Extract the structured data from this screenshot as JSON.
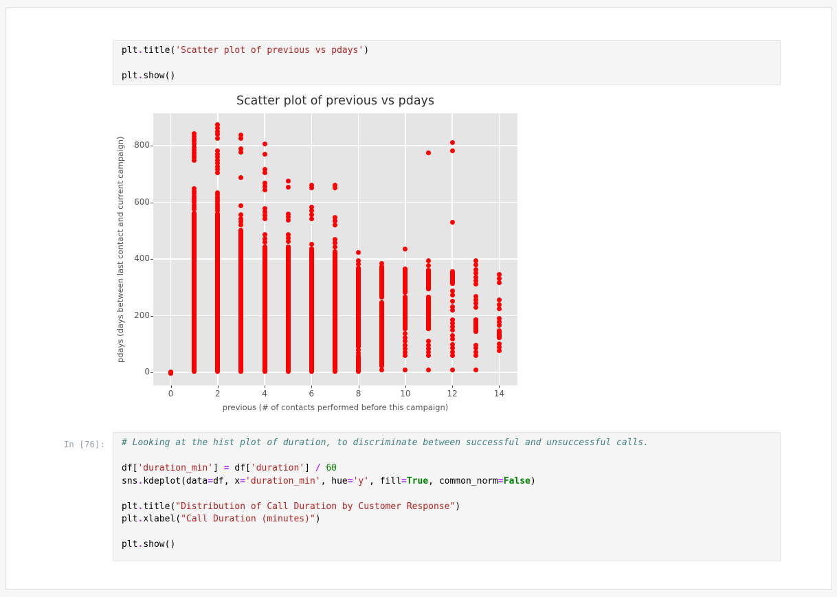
{
  "notebook": {
    "cell1": {
      "lines": [
        [
          [
            "p",
            "plt"
          ],
          [
            "o",
            "."
          ],
          [
            "p",
            "title("
          ],
          [
            "s",
            "'Scatter plot of previous vs pdays'"
          ],
          [
            "p",
            ")"
          ]
        ],
        [],
        [
          [
            "p",
            "plt"
          ],
          [
            "o",
            "."
          ],
          [
            "p",
            "show()"
          ]
        ]
      ]
    },
    "cell2": {
      "prompt": "In [76]:",
      "lines": [
        [
          [
            "c",
            "# Looking at the hist plot of duration, to discriminate between successful and unsuccessful calls."
          ]
        ],
        [],
        [
          [
            "p",
            "df["
          ],
          [
            "s",
            "'duration_min'"
          ],
          [
            "p",
            "] "
          ],
          [
            "o",
            "="
          ],
          [
            "p",
            " df["
          ],
          [
            "s",
            "'duration'"
          ],
          [
            "p",
            "] "
          ],
          [
            "o",
            "/"
          ],
          [
            "p",
            " "
          ],
          [
            "n",
            "60"
          ]
        ],
        [
          [
            "p",
            "sns"
          ],
          [
            "o",
            "."
          ],
          [
            "p",
            "kdeplot(data"
          ],
          [
            "o",
            "="
          ],
          [
            "p",
            "df, x"
          ],
          [
            "o",
            "="
          ],
          [
            "s",
            "'duration_min'"
          ],
          [
            "p",
            ", hue"
          ],
          [
            "o",
            "="
          ],
          [
            "s",
            "'y'"
          ],
          [
            "p",
            ", fill"
          ],
          [
            "o",
            "="
          ],
          [
            "k",
            "True"
          ],
          [
            "p",
            ", common_norm"
          ],
          [
            "o",
            "="
          ],
          [
            "k",
            "False"
          ],
          [
            "p",
            ")"
          ]
        ],
        [],
        [
          [
            "p",
            "plt"
          ],
          [
            "o",
            "."
          ],
          [
            "p",
            "title("
          ],
          [
            "s",
            "\"Distribution of Call Duration by Customer Response\""
          ],
          [
            "p",
            ")"
          ]
        ],
        [
          [
            "p",
            "plt"
          ],
          [
            "o",
            "."
          ],
          [
            "p",
            "xlabel("
          ],
          [
            "s",
            "\"Call Duration (minutes)\""
          ],
          [
            "p",
            ")"
          ]
        ],
        [],
        [
          [
            "p",
            "plt"
          ],
          [
            "o",
            "."
          ],
          [
            "p",
            "show()"
          ]
        ]
      ]
    }
  },
  "chart_data": {
    "type": "scatter",
    "title": "Scatter plot of previous vs pdays",
    "xlabel": "previous (# of contacts performed before this campaign)",
    "ylabel": "pdays (days between last contact and current campaign)",
    "x_ticks": [
      0,
      2,
      4,
      6,
      8,
      10,
      12,
      14
    ],
    "y_ticks": [
      0,
      200,
      400,
      600,
      800
    ],
    "xlim": [
      -0.75,
      14.78
    ],
    "ylim": [
      -46,
      914
    ],
    "grid": true,
    "point_color": "#ff0000",
    "plot_bg": "#e5e5e5",
    "columns": [
      {
        "x": 0,
        "bars": [
          [
            -8,
            6
          ]
        ],
        "dots": []
      },
      {
        "x": 1,
        "bars": [
          [
            0,
            565
          ]
        ],
        "dots": [
          575,
          583,
          591,
          599,
          607,
          615,
          623,
          632,
          640,
          648,
          748,
          757,
          766,
          775,
          784,
          793,
          806,
          815,
          824,
          833,
          842
        ]
      },
      {
        "x": 2,
        "bars": [
          [
            0,
            562
          ]
        ],
        "dots": [
          570,
          578,
          586,
          594,
          602,
          610,
          618,
          626,
          634,
          704,
          716,
          727,
          738,
          748,
          759,
          770,
          781,
          825,
          841,
          849,
          861,
          873
        ]
      },
      {
        "x": 3,
        "bars": [
          [
            0,
            505
          ]
        ],
        "dots": [
          519,
          531,
          543,
          556,
          588,
          688,
          777,
          789,
          826,
          838
        ]
      },
      {
        "x": 4,
        "bars": [
          [
            0,
            447
          ]
        ],
        "dots": [
          460,
          472,
          485,
          541,
          553,
          566,
          578,
          644,
          656,
          668,
          704,
          716,
          769,
          806
        ]
      },
      {
        "x": 5,
        "bars": [
          [
            0,
            445
          ]
        ],
        "dots": [
          461,
          473,
          485,
          538,
          548,
          558,
          653,
          675
        ]
      },
      {
        "x": 6,
        "bars": [
          [
            0,
            438
          ]
        ],
        "dots": [
          452,
          543,
          556,
          570,
          584,
          650,
          661
        ]
      },
      {
        "x": 7,
        "bars": [
          [
            0,
            430
          ]
        ],
        "dots": [
          443,
          456,
          470,
          521,
          534,
          547,
          650,
          661
        ]
      },
      {
        "x": 8,
        "bars": [
          [
            0,
            55
          ],
          [
            88,
            370
          ]
        ],
        "dots": [
          60,
          70,
          80,
          382,
          394,
          422
        ]
      },
      {
        "x": 9,
        "bars": [
          [
            20,
            250
          ],
          [
            262,
            376
          ]
        ],
        "dots": [
          8,
          385
        ]
      },
      {
        "x": 10,
        "bars": [
          [
            150,
            270
          ],
          [
            280,
            368
          ]
        ],
        "dots": [
          8,
          60,
          72,
          84,
          96,
          110,
          123,
          136,
          435
        ]
      },
      {
        "x": 11,
        "bars": [
          [
            150,
            270
          ],
          [
            290,
            364
          ]
        ],
        "dots": [
          8,
          60,
          72,
          84,
          96,
          110,
          377,
          393,
          775
        ]
      },
      {
        "x": 12,
        "bars": [
          [
            311,
            359
          ]
        ],
        "dots": [
          8,
          59,
          72,
          85,
          99,
          118,
          130,
          150,
          162,
          174,
          186,
          220,
          232,
          250,
          272,
          287,
          530,
          782,
          812
        ]
      },
      {
        "x": 13,
        "bars": [
          [
            140,
            190
          ]
        ],
        "dots": [
          8,
          60,
          72,
          85,
          97,
          230,
          243,
          256,
          268,
          311,
          324,
          337,
          350,
          363,
          380,
          395
        ]
      },
      {
        "x": 14,
        "bars": [
          [
            120,
            150
          ]
        ],
        "dots": [
          76,
          88,
          100,
          165,
          178,
          190,
          225,
          240,
          255,
          316,
          330,
          345
        ]
      }
    ]
  }
}
